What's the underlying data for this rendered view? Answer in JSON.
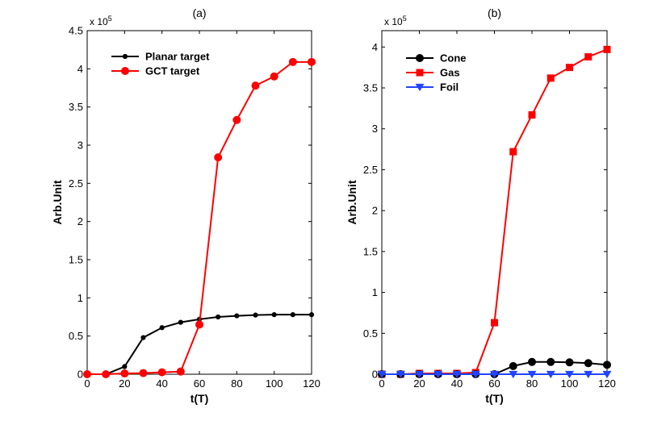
{
  "chart_data": [
    {
      "type": "line",
      "title": "(a)",
      "xlabel": "t(T)",
      "ylabel": "Arb.Unit",
      "xlim": [
        0,
        120
      ],
      "ylim": [
        0,
        4.5
      ],
      "xticks": [
        0,
        20,
        40,
        60,
        80,
        100,
        120
      ],
      "yticks": [
        0,
        0.5,
        1,
        1.5,
        2,
        2.5,
        3,
        3.5,
        4,
        4.5
      ],
      "ytick_labels": [
        "0",
        "0.5",
        "1",
        "1.5",
        "2",
        "2.5",
        "3",
        "3.5",
        "4",
        "4.5"
      ],
      "xtick_labels": [
        "0",
        "20",
        "40",
        "60",
        "80",
        "100",
        "120"
      ],
      "exponent_base": "x 10",
      "exponent_power": "5",
      "legend_position": "top-left",
      "x": [
        0,
        10,
        20,
        30,
        40,
        50,
        60,
        70,
        80,
        90,
        100,
        110,
        120
      ],
      "series": [
        {
          "name": "Planar target",
          "color": "#000000",
          "marker": "dot-small",
          "values": [
            0,
            0,
            0.1,
            0.48,
            0.61,
            0.68,
            0.72,
            0.75,
            0.765,
            0.775,
            0.78,
            0.78,
            0.78
          ]
        },
        {
          "name": "GCT target",
          "color": "#ff0000",
          "marker": "circle",
          "values": [
            0,
            0,
            0.01,
            0.015,
            0.025,
            0.035,
            0.65,
            2.84,
            3.33,
            3.78,
            3.9,
            4.09,
            4.09
          ]
        }
      ]
    },
    {
      "type": "line",
      "title": "(b)",
      "xlabel": "t(T)",
      "ylabel": "Arb.Unit",
      "xlim": [
        0,
        120
      ],
      "ylim": [
        0,
        4.2
      ],
      "xticks": [
        0,
        20,
        40,
        60,
        80,
        100,
        120
      ],
      "yticks": [
        0,
        0.5,
        1,
        1.5,
        2,
        2.5,
        3,
        3.5,
        4
      ],
      "ytick_labels": [
        "0",
        "0.5",
        "1",
        "1.5",
        "2",
        "2.5",
        "3",
        "3.5",
        "4"
      ],
      "xtick_labels": [
        "0",
        "20",
        "40",
        "60",
        "80",
        "100",
        "120"
      ],
      "exponent_base": "x 10",
      "exponent_power": "5",
      "legend_position": "top-left",
      "x": [
        0,
        10,
        20,
        30,
        40,
        50,
        60,
        70,
        80,
        90,
        100,
        110,
        120
      ],
      "series": [
        {
          "name": "Cone",
          "color": "#000000",
          "marker": "circle",
          "values": [
            0,
            0,
            0,
            0,
            0,
            0,
            0,
            0.1,
            0.15,
            0.15,
            0.145,
            0.135,
            0.115
          ]
        },
        {
          "name": "Gas",
          "color": "#ff0000",
          "marker": "square",
          "values": [
            0,
            0,
            0.01,
            0.01,
            0.01,
            0.02,
            0.63,
            2.72,
            3.17,
            3.62,
            3.75,
            3.88,
            3.97
          ]
        },
        {
          "name": "Foil",
          "color": "#2244ff",
          "marker": "triangle-down",
          "values": [
            0,
            0,
            0,
            0,
            0,
            0,
            0,
            0,
            0,
            0,
            0,
            0,
            0
          ]
        }
      ]
    }
  ]
}
